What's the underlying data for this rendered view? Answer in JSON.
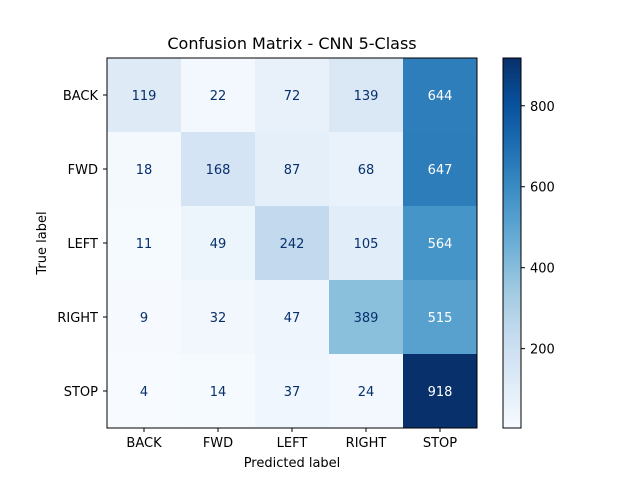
{
  "chart_data": {
    "type": "heatmap",
    "title": "Confusion Matrix - CNN 5-Class",
    "xlabel": "Predicted label",
    "ylabel": "True label",
    "x_categories": [
      "BACK",
      "FWD",
      "LEFT",
      "RIGHT",
      "STOP"
    ],
    "y_categories": [
      "BACK",
      "FWD",
      "LEFT",
      "RIGHT",
      "STOP"
    ],
    "values": [
      [
        119,
        22,
        72,
        139,
        644
      ],
      [
        18,
        168,
        87,
        68,
        647
      ],
      [
        11,
        49,
        242,
        105,
        564
      ],
      [
        9,
        32,
        47,
        389,
        515
      ],
      [
        4,
        14,
        37,
        24,
        918
      ]
    ],
    "colormap": "Blues",
    "colorbar": {
      "range": [
        4,
        918
      ],
      "ticks": [
        200,
        400,
        600,
        800
      ]
    },
    "cell_text_colors": {
      "light": "#ffffff",
      "dark": "#08306b"
    }
  }
}
